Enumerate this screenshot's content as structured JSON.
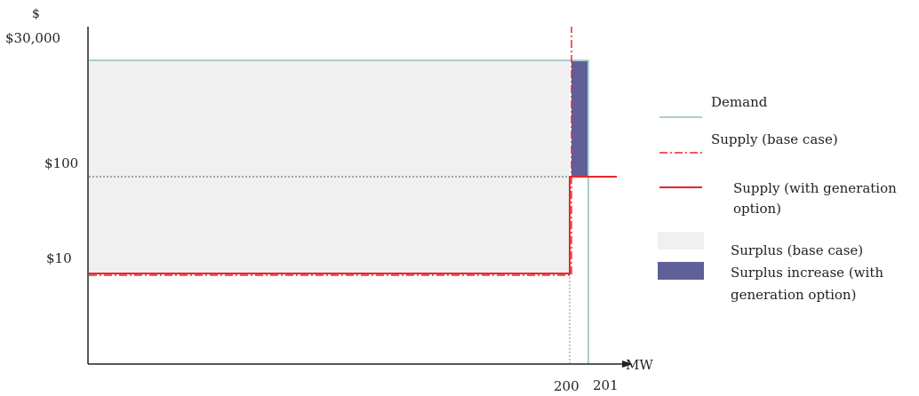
{
  "chart_data": {
    "type": "line",
    "title": "",
    "y_unit_label": "$",
    "x_unit_label": "MW",
    "y_ticks": [
      "$30,000",
      "$100",
      "$10"
    ],
    "x_ticks": [
      "200",
      "201"
    ],
    "y_scale": "piecewise (not to scale)",
    "grid": false,
    "legend_position": "right",
    "series": [
      {
        "name": "Demand",
        "style": "solid",
        "color": "#8fbfc0",
        "points": [
          [
            0,
            30000
          ],
          [
            201,
            30000
          ],
          [
            201,
            0
          ]
        ]
      },
      {
        "name": "Supply (base case)",
        "style": "dash-dot",
        "color": "#e8262b",
        "points": [
          [
            0,
            10
          ],
          [
            200,
            10
          ],
          [
            200,
            30000
          ]
        ]
      },
      {
        "name": "Supply (with generation option)",
        "style": "solid",
        "color": "#e8262b",
        "points": [
          [
            0,
            10
          ],
          [
            200,
            10
          ],
          [
            200,
            100
          ],
          [
            202,
            100
          ]
        ]
      }
    ],
    "areas": [
      {
        "name": "Surplus (base case)",
        "color": "#f0f0f0",
        "x_range": [
          0,
          200
        ],
        "y_range": [
          10,
          30000
        ]
      },
      {
        "name": "Surplus increase (with generation option)",
        "color": "#5f5f99",
        "x_range": [
          200,
          201
        ],
        "y_range": [
          100,
          30000
        ]
      }
    ],
    "legend": [
      {
        "key": "demand",
        "label": "Demand",
        "swatch": "line-solid",
        "color": "#8fbfc0"
      },
      {
        "key": "supply_base",
        "label": "Supply (base case)",
        "swatch": "line-dashdot",
        "color": "#e8262b"
      },
      {
        "key": "supply_gen",
        "label": "Supply (with generation option)",
        "swatch": "line-solid",
        "color": "#e8262b"
      },
      {
        "key": "surplus_base",
        "label": "Surplus (base case)",
        "swatch": "box",
        "color": "#f0f0f0"
      },
      {
        "key": "surplus_inc",
        "label": "Surplus increase (with generation option)",
        "swatch": "box",
        "color": "#5f5f99"
      }
    ]
  },
  "legend_text": {
    "demand": "Demand",
    "supply_base": "Supply (base case)",
    "supply_gen_1": "Supply (with generation",
    "supply_gen_2": "option)",
    "surplus_base": "Surplus (base case)",
    "surplus_inc_1": "Surplus increase (with",
    "surplus_inc_2": "generation option)"
  }
}
